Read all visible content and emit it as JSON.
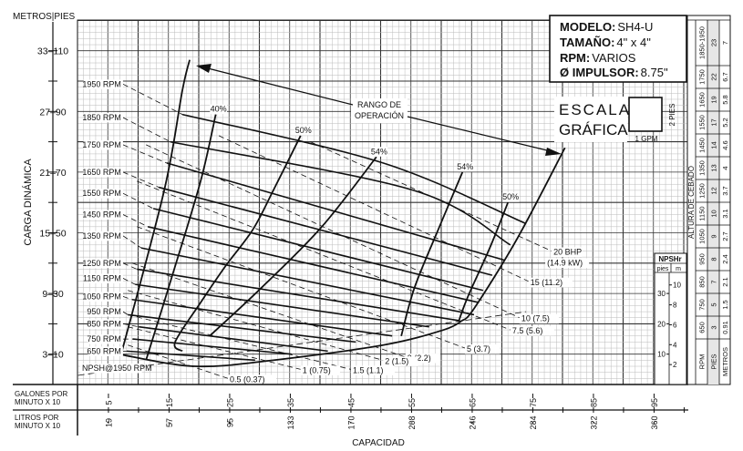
{
  "axis": {
    "y_units_header": "METROS|PIES",
    "y_label": "CARGA DINÁMICA",
    "y_ticks": [
      "33–110",
      "27–90",
      "21–70",
      "15–50",
      "9–30",
      "3–10"
    ],
    "gpm_row_label_1": "GALONES POR",
    "gpm_row_label_2": "MINUTO X 10",
    "lpm_row_label_1": "LITROS POR",
    "lpm_row_label_2": "MINUTO X 10",
    "gpm_ticks": [
      "5",
      "15",
      "25",
      "35",
      "45",
      "55",
      "65",
      "75",
      "85",
      "95"
    ],
    "lpm_ticks": [
      "19",
      "57",
      "95",
      "133",
      "170",
      "208",
      "246",
      "284",
      "322",
      "360"
    ],
    "x_label": "CAPACIDAD"
  },
  "info_box": {
    "model_label": "MODELO:",
    "model_value": "SH4-U",
    "size_label": "TAMAÑO:",
    "size_value": "4\" x 4\"",
    "rpm_label": "RPM:",
    "rpm_value": "VARIOS",
    "impeller_label": "Ø IMPULSOR:",
    "impeller_value": "8.75\""
  },
  "scale": {
    "line1": "ESCALA",
    "line2": "GRÁFICA",
    "vertical": "2 PIES",
    "horizontal": "1 GPM"
  },
  "operating_range": {
    "line1": "RANGO DE",
    "line2": "OPERACIÓN"
  },
  "npshr_box": {
    "title": "NPSHr",
    "col_ft": "pies",
    "col_m": "m",
    "ft_ticks": [
      "30",
      "20",
      "10"
    ],
    "m_ticks": [
      "10",
      "8",
      "6",
      "4",
      "2"
    ]
  },
  "priming_table": {
    "title": "ALTURA DE CEBADO",
    "headers": [
      "RPM",
      "PIES",
      "METROS"
    ],
    "rows": [
      [
        "1850-1950",
        "23",
        "7"
      ],
      [
        "1750",
        "22",
        "6.7"
      ],
      [
        "1650",
        "19",
        "5.8"
      ],
      [
        "1550",
        "17",
        "5.2"
      ],
      [
        "1450",
        "14",
        "4.6"
      ],
      [
        "1350",
        "13",
        "4"
      ],
      [
        "1250",
        "12",
        "3.7"
      ],
      [
        "1150",
        "10",
        "3.1"
      ],
      [
        "1050",
        "9",
        "2.7"
      ],
      [
        "950",
        "8",
        "2.4"
      ],
      [
        "850",
        "7",
        "2.1"
      ],
      [
        "750",
        "5",
        "1.5"
      ],
      [
        "650",
        "3",
        "0.91"
      ]
    ]
  },
  "chart_data": {
    "type": "line",
    "xlabel": "CAPACIDAD",
    "ylabel": "CARGA DINÁMICA",
    "x_units": "GPM",
    "y_units": "ft",
    "xlim": [
      0,
      1010
    ],
    "ylim": [
      0,
      120
    ],
    "grid": true,
    "rpm_curves": [
      {
        "name": "1950 RPM",
        "points": [
          [
            74,
            99
          ],
          [
            172,
            89
          ],
          [
            503,
            73
          ],
          [
            739,
            53
          ]
        ]
      },
      {
        "name": "1850 RPM",
        "points": [
          [
            74,
            88
          ],
          [
            152,
            80
          ],
          [
            553,
            64
          ],
          [
            713,
            46
          ]
        ]
      },
      {
        "name": "1750 RPM",
        "points": [
          [
            74,
            79
          ],
          [
            146,
            73
          ],
          [
            703,
            41
          ]
        ]
      },
      {
        "name": "1650 RPM",
        "points": [
          [
            74,
            70
          ],
          [
            133,
            65
          ],
          [
            683,
            36
          ]
        ]
      },
      {
        "name": "1550 RPM",
        "points": [
          [
            74,
            63
          ],
          [
            124,
            58
          ],
          [
            668,
            31
          ]
        ]
      },
      {
        "name": "1450 RPM",
        "points": [
          [
            74,
            56
          ],
          [
            115,
            52
          ],
          [
            661,
            27
          ]
        ]
      },
      {
        "name": "1350 RPM",
        "points": [
          [
            74,
            49
          ],
          [
            104,
            45
          ],
          [
            653,
            23
          ]
        ]
      },
      {
        "name": "1250 RPM",
        "points": [
          [
            74,
            40
          ],
          [
            97,
            38
          ],
          [
            630,
            21
          ]
        ]
      },
      {
        "name": "1150 RPM",
        "points": [
          [
            74,
            35
          ],
          [
            94,
            33
          ],
          [
            579,
            19
          ]
        ]
      },
      {
        "name": "1050 RPM",
        "points": [
          [
            74,
            29
          ],
          [
            89,
            28
          ],
          [
            518,
            16
          ]
        ]
      },
      {
        "name": "950 RPM",
        "points": [
          [
            74,
            24
          ],
          [
            82,
            23
          ],
          [
            458,
            14
          ]
        ]
      },
      {
        "name": "850 RPM",
        "points": [
          [
            74,
            20
          ],
          [
            100,
            19
          ],
          [
            412,
            11
          ]
        ]
      },
      {
        "name": "750 RPM",
        "points": [
          [
            74,
            15
          ],
          [
            90,
            15
          ],
          [
            352,
            10
          ]
        ]
      },
      {
        "name": "650 RPM",
        "points": [
          [
            74,
            11
          ],
          [
            80,
            11
          ],
          [
            292,
            8
          ]
        ]
      }
    ],
    "efficiency_curves": [
      {
        "name": "40%",
        "points": [
          [
            112,
            8
          ],
          [
            157,
            37
          ],
          [
            202,
            67
          ],
          [
            227,
            89
          ]
        ]
      },
      {
        "name": "50%",
        "points": [
          [
            172,
            11
          ],
          [
            160,
            14
          ],
          [
            202,
            27
          ],
          [
            243,
            39
          ],
          [
            288,
            51
          ],
          [
            322,
            64
          ],
          [
            367,
            82
          ]
        ]
      },
      {
        "name": "54%",
        "points": [
          [
            217,
            16
          ],
          [
            303,
            32
          ],
          [
            402,
            52
          ],
          [
            492,
            75
          ]
        ]
      },
      {
        "name": "54%",
        "points": [
          [
            533,
            16
          ],
          [
            555,
            32
          ],
          [
            596,
            52
          ],
          [
            634,
            70
          ]
        ]
      },
      {
        "name": "50%",
        "points": [
          [
            628,
            21
          ],
          [
            643,
            29
          ],
          [
            679,
            45
          ],
          [
            709,
            60
          ]
        ]
      }
    ],
    "operating_range_boundary": {
      "left": [
        [
          71,
          10
        ],
        [
          142,
          64
        ],
        [
          172,
          97
        ],
        [
          184,
          107
        ]
      ],
      "right": [
        [
          633,
          21
        ],
        [
          653,
          25
        ],
        [
          724,
          48
        ],
        [
          803,
          78
        ]
      ],
      "bottom": [
        [
          67,
          10
        ],
        [
          192,
          6
        ],
        [
          322,
          8
        ],
        [
          503,
          13
        ],
        [
          603,
          18
        ],
        [
          633,
          21
        ]
      ]
    },
    "bhp_lines": [
      {
        "name": "20 BHP",
        "sub": "(14.9 kW)",
        "points": [
          [
            383,
            80
          ],
          [
            781,
            44
          ]
        ]
      },
      {
        "name": "15 (11.2)",
        "points": [
          [
            232,
            82
          ],
          [
            743,
            34
          ]
        ]
      },
      {
        "name": "10 (7.5)",
        "points": [
          [
            112,
            79
          ],
          [
            728,
            22
          ]
        ]
      },
      {
        "name": "7.5 (5.6)",
        "points": [
          [
            97,
            67
          ],
          [
            713,
            18
          ]
        ]
      },
      {
        "name": "5 (3.7)",
        "points": [
          [
            97,
            52
          ],
          [
            638,
            12
          ]
        ]
      },
      {
        "name": "3 (2.2)",
        "points": [
          [
            89,
            40
          ],
          [
            540,
            9
          ]
        ]
      },
      {
        "name": "2 (1.5)",
        "points": [
          [
            82,
            31
          ],
          [
            503,
            8
          ]
        ]
      },
      {
        "name": "1.5 (1.1)",
        "points": [
          [
            82,
            23
          ],
          [
            450,
            5
          ]
        ]
      },
      {
        "name": "1 (0.75)",
        "points": [
          [
            82,
            19
          ],
          [
            367,
            5
          ]
        ]
      },
      {
        "name": "0.5 (0.37)",
        "points": [
          [
            82,
            13
          ],
          [
            247,
            2
          ]
        ]
      }
    ],
    "npsh_curve": {
      "name": "NPSH@1950 RPM",
      "points": [
        [
          0,
          3
        ],
        [
          739,
          24
        ]
      ]
    }
  }
}
